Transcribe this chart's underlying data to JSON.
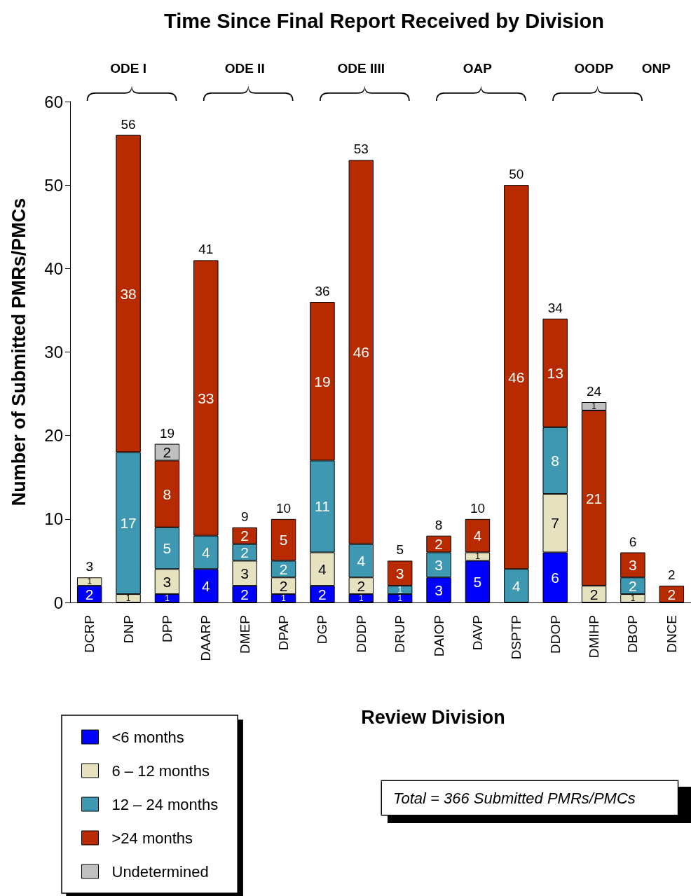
{
  "chart_data": {
    "type": "bar",
    "title": "Time Since Final Report Received by Division",
    "xlabel": "Review Division",
    "ylabel": "Number of Submitted PMRs/PMCs",
    "categories": [
      "DCRP",
      "DNP",
      "DPP",
      "DAARP",
      "DMEP",
      "DPAP",
      "DGP",
      "DDDP",
      "DRUP",
      "DAIOP",
      "DAVP",
      "DSPTP",
      "DDOP",
      "DMIHP",
      "DBOP",
      "DNCE"
    ],
    "stacked": true,
    "series": [
      {
        "name": "<6 months",
        "color": "#0000ff",
        "values": [
          2,
          0,
          1,
          4,
          2,
          1,
          2,
          1,
          1,
          3,
          5,
          0,
          6,
          0,
          0,
          0
        ],
        "value_labels": [
          "2",
          null,
          "1",
          "4",
          "2",
          "1",
          "2",
          "1",
          "1",
          "3",
          "5",
          null,
          "6",
          null,
          null,
          null
        ]
      },
      {
        "name": "6 – 12 months",
        "color": "#e6e2bf",
        "values": [
          1,
          1,
          3,
          0,
          3,
          2,
          4,
          2,
          0,
          0,
          1,
          0,
          7,
          2,
          1,
          0
        ],
        "value_labels": [
          "1",
          "1",
          "3",
          null,
          "3",
          "2",
          "4",
          "2",
          null,
          null,
          "1",
          null,
          "7",
          "2",
          "1",
          null
        ]
      },
      {
        "name": "12 – 24 months",
        "color": "#3f98b2",
        "values": [
          0,
          17,
          5,
          4,
          2,
          2,
          11,
          4,
          1,
          3,
          0,
          4,
          8,
          0,
          2,
          0
        ],
        "value_labels": [
          null,
          "17",
          "5",
          "4",
          "2",
          "2",
          "11",
          "4",
          "1",
          "3",
          null,
          "4",
          "8",
          null,
          "2",
          null
        ]
      },
      {
        "name": ">24 months",
        "color": "#b82b00",
        "values": [
          0,
          38,
          8,
          33,
          2,
          5,
          19,
          46,
          3,
          2,
          4,
          46,
          13,
          21,
          3,
          2
        ],
        "value_labels": [
          null,
          "38",
          "8",
          "33",
          "2",
          "5",
          "19",
          "46",
          "3",
          "2",
          "4",
          "46",
          "13",
          "21",
          "3",
          "2"
        ]
      },
      {
        "name": "Undetermined",
        "color": "#c0c0c0",
        "values": [
          0,
          0,
          2,
          0,
          0,
          0,
          0,
          0,
          0,
          0,
          0,
          0,
          0,
          1,
          0,
          0
        ],
        "value_labels": [
          null,
          null,
          "2",
          null,
          null,
          null,
          null,
          null,
          null,
          null,
          null,
          null,
          null,
          "1",
          null,
          null
        ]
      }
    ],
    "totals": [
      "3",
      "56",
      "19",
      "41",
      "9",
      "10",
      "36",
      "53",
      "5",
      "8",
      "10",
      "50",
      "34",
      "24",
      "6",
      "2"
    ],
    "ylim": [
      0,
      60
    ],
    "yticks": [
      0,
      10,
      20,
      30,
      40,
      50,
      60
    ],
    "grid": false,
    "legend": "bottom left",
    "annotations": [
      "ODE I",
      "ODE II",
      "ODE IIII",
      "OAP",
      "OODP",
      "ONP",
      "Total = 366 Submitted PMRs/PMCs"
    ]
  }
}
